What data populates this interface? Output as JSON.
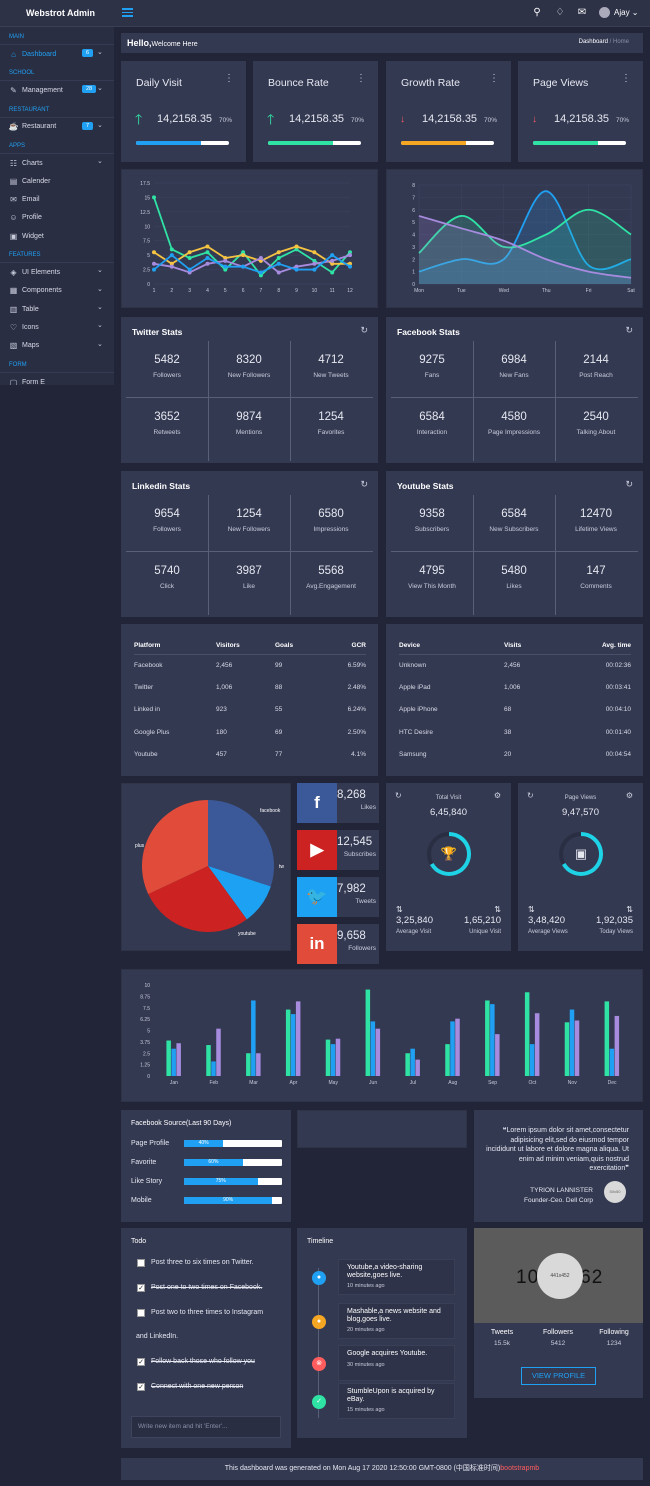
{
  "header": {
    "brand": "Webstrot Admin",
    "user": "Ajay ⌄"
  },
  "sidebar": [
    {
      "type": "section",
      "label": "MAIN"
    },
    {
      "type": "item",
      "label": "Dashboard",
      "icon": "home-icon",
      "glyph": "⌂",
      "badge": "6",
      "chevron": true,
      "active": true
    },
    {
      "type": "section",
      "label": "SCHOOL"
    },
    {
      "type": "item",
      "label": "Management",
      "icon": "management-icon",
      "glyph": "✎",
      "badge": "28",
      "chevron": true
    },
    {
      "type": "section",
      "label": "RESTAURANT"
    },
    {
      "type": "item",
      "label": "Restaurant",
      "icon": "restaurant-icon",
      "glyph": "☕",
      "badge": "7",
      "chevron": true
    },
    {
      "type": "section",
      "label": "APPS"
    },
    {
      "type": "item",
      "label": "Charts",
      "icon": "charts-icon",
      "glyph": "☷",
      "chevron": true
    },
    {
      "type": "item",
      "label": "Calender",
      "icon": "calendar-icon",
      "glyph": "▤"
    },
    {
      "type": "item",
      "label": "Email",
      "icon": "email-icon",
      "glyph": "✉"
    },
    {
      "type": "item",
      "label": "Profile",
      "icon": "profile-icon",
      "glyph": "☺"
    },
    {
      "type": "item",
      "label": "Widget",
      "icon": "widget-icon",
      "glyph": "▣"
    },
    {
      "type": "section",
      "label": "FEATURES"
    },
    {
      "type": "item",
      "label": "UI Elements",
      "icon": "ui-elements-icon",
      "glyph": "◈",
      "chevron": true
    },
    {
      "type": "item",
      "label": "Components",
      "icon": "components-icon",
      "glyph": "▦",
      "chevron": true
    },
    {
      "type": "item",
      "label": "Table",
      "icon": "table-icon",
      "glyph": "▥",
      "chevron": true
    },
    {
      "type": "item",
      "label": "Icons",
      "icon": "heart-icon",
      "glyph": "♡",
      "chevron": true
    },
    {
      "type": "item",
      "label": "Maps",
      "icon": "maps-icon",
      "glyph": "▧",
      "chevron": true
    },
    {
      "type": "section",
      "label": "FORM"
    },
    {
      "type": "item",
      "label": "Form E",
      "icon": "form-icon",
      "glyph": "▢"
    }
  ],
  "breadcrumb": {
    "hello": "Hello,",
    "welcome": "Welcome Here",
    "dashboard": "Dashboard",
    "separator": " / ",
    "home": "Home"
  },
  "stats": [
    {
      "title": "Daily Visit",
      "value": "14,2158.35",
      "percent": "70%",
      "trend": "up",
      "arrow": "🡑",
      "arrow_color": "#2fe3a4",
      "bar_color": "#1fa0f2",
      "progress": 0.7
    },
    {
      "title": "Bounce Rate",
      "value": "14,2158.35",
      "percent": "70%",
      "trend": "up",
      "arrow": "🡑",
      "arrow_color": "#2fe3a4",
      "bar_color": "#2fe3a4",
      "progress": 0.7
    },
    {
      "title": "Growth Rate",
      "value": "14,2158.35",
      "percent": "70%",
      "trend": "down",
      "arrow": "↓",
      "arrow_color": "#ff5d5d",
      "bar_color": "#f5a623",
      "progress": 0.7
    },
    {
      "title": "Page Views",
      "value": "14,2158.35",
      "percent": "70%",
      "trend": "down",
      "arrow": "↓",
      "arrow_color": "#ff5d5d",
      "bar_color": "#2fe3a4",
      "progress": 0.7
    }
  ],
  "chart_data": [
    {
      "type": "line",
      "x": [
        1,
        2,
        3,
        4,
        5,
        6,
        7,
        8,
        9,
        10,
        11,
        12
      ],
      "ylim": [
        0,
        17.5
      ],
      "yticks": [
        0,
        2.5,
        5,
        7.5,
        10,
        12.5,
        15,
        17.5
      ],
      "colors": {
        "teal": "#2fe3a4",
        "yellow": "#f5c342",
        "purple": "#a78bdf",
        "blue": "#1fa0f2"
      },
      "series": [
        {
          "color": "teal",
          "values": [
            15,
            6,
            4.5,
            5.5,
            2.5,
            5.5,
            1.5,
            4.5,
            6,
            4,
            2,
            5.5
          ]
        },
        {
          "color": "yellow",
          "values": [
            5.5,
            3.5,
            5.5,
            6.5,
            4.5,
            5,
            4,
            5.5,
            6.5,
            5.5,
            3.5,
            3.5
          ]
        },
        {
          "color": "purple",
          "values": [
            3.5,
            3,
            2,
            3.5,
            4,
            3,
            4.5,
            2,
            3,
            3.5,
            4,
            5
          ]
        },
        {
          "color": "blue",
          "values": [
            2.5,
            5,
            2.5,
            4.5,
            3,
            3,
            2,
            3.5,
            2.5,
            2.5,
            5,
            3
          ]
        }
      ]
    },
    {
      "type": "area",
      "categories": [
        "Mon",
        "Tue",
        "Wed",
        "Thu",
        "Fri",
        "Sat"
      ],
      "ylim": [
        0,
        8
      ],
      "yticks": [
        0,
        1,
        2,
        3,
        4,
        5,
        6,
        7,
        8
      ],
      "colors": {
        "blue": "#1fa0f2",
        "teal": "#2fe3a4",
        "purple": "#a78bdf"
      },
      "series": [
        {
          "color": "blue",
          "values": [
            1,
            2,
            2,
            7.5,
            1.5,
            2
          ]
        },
        {
          "color": "teal",
          "values": [
            2.5,
            5.5,
            3,
            4,
            6,
            4
          ]
        },
        {
          "color": "purple",
          "values": [
            5.5,
            4.5,
            3.5,
            2,
            1,
            0.5
          ]
        }
      ]
    },
    {
      "type": "pie",
      "labels": [
        "facebook",
        "tw",
        "youtube",
        "plus"
      ],
      "values": [
        30,
        10,
        28,
        32
      ],
      "colors": [
        "#3b5998",
        "#1da1f2",
        "#cc2222",
        "#e04b3a"
      ]
    },
    {
      "type": "bar",
      "categories": [
        "Jan",
        "Feb",
        "Mar",
        "Apr",
        "May",
        "Jun",
        "Jul",
        "Aug",
        "Sep",
        "Oct",
        "Nov",
        "Dec"
      ],
      "ylim": [
        0,
        10
      ],
      "yticks": [
        0,
        1.25,
        2.5,
        3.75,
        5,
        6.25,
        7.5,
        8.75,
        10
      ],
      "colors": {
        "teal": "#2fe3a4",
        "blue": "#1fa0f2",
        "purple": "#a78bdf"
      },
      "series": [
        {
          "color": "teal",
          "values": [
            3.9,
            3.4,
            2.5,
            7.3,
            4,
            9.5,
            2.5,
            3.5,
            8.3,
            9.2,
            5.9,
            8.2
          ]
        },
        {
          "color": "blue",
          "values": [
            3,
            1.6,
            8.3,
            6.8,
            3.5,
            6,
            3,
            6,
            7.9,
            3.5,
            7.3,
            3
          ]
        },
        {
          "color": "purple",
          "values": [
            3.6,
            5.2,
            2.5,
            8.2,
            4.1,
            5.2,
            1.8,
            6.3,
            4.6,
            6.9,
            6.1,
            6.6
          ]
        }
      ]
    }
  ],
  "twitter": {
    "title": "Twitter Stats",
    "cells": [
      {
        "value": "5482",
        "label": "Followers"
      },
      {
        "value": "8320",
        "label": "New Followers"
      },
      {
        "value": "4712",
        "label": "New Tweets"
      },
      {
        "value": "3652",
        "label": "Retweets"
      },
      {
        "value": "9874",
        "label": "Mentions"
      },
      {
        "value": "1254",
        "label": "Favorites"
      }
    ]
  },
  "facebook": {
    "title": "Facebook Stats",
    "cells": [
      {
        "value": "9275",
        "label": "Fans"
      },
      {
        "value": "6984",
        "label": "New Fans"
      },
      {
        "value": "2144",
        "label": "Post Reach"
      },
      {
        "value": "6584",
        "label": "Interaction"
      },
      {
        "value": "4580",
        "label": "Page Impressions"
      },
      {
        "value": "2540",
        "label": "Talking About"
      }
    ]
  },
  "linkedin": {
    "title": "Linkedin Stats",
    "cells": [
      {
        "value": "9654",
        "label": "Followers"
      },
      {
        "value": "1254",
        "label": "New Followers"
      },
      {
        "value": "6580",
        "label": "Impressions"
      },
      {
        "value": "5740",
        "label": "Click"
      },
      {
        "value": "3987",
        "label": "Like"
      },
      {
        "value": "5568",
        "label": "Avg.Engagement"
      }
    ]
  },
  "youtube": {
    "title": "Youtube Stats",
    "cells": [
      {
        "value": "9358",
        "label": "Subscribers"
      },
      {
        "value": "6584",
        "label": "New Subscribers"
      },
      {
        "value": "12470",
        "label": "Lifetime Views"
      },
      {
        "value": "4795",
        "label": "View This Month"
      },
      {
        "value": "5480",
        "label": "Likes"
      },
      {
        "value": "147",
        "label": "Comments"
      }
    ]
  },
  "platform_table": {
    "headers": [
      "Platform",
      "Visitors",
      "Goals",
      "GCR"
    ],
    "rows": [
      [
        "Facebook",
        "2,456",
        "99",
        "6.59%"
      ],
      [
        "Twitter",
        "1,006",
        "88",
        "2.48%"
      ],
      [
        "Linked in",
        "923",
        "55",
        "6.24%"
      ],
      [
        "Google Plus",
        "180",
        "69",
        "2.50%"
      ],
      [
        "Youtube",
        "457",
        "77",
        "4.1%"
      ]
    ]
  },
  "device_table": {
    "headers": [
      "Device",
      "Visits",
      "Avg. time"
    ],
    "rows": [
      [
        "Unknown",
        "2,456",
        "00:02:36"
      ],
      [
        "Apple iPad",
        "1,006",
        "00:03:41"
      ],
      [
        "Apple iPhone",
        "68",
        "00:04:10"
      ],
      [
        "HTC Desire",
        "38",
        "00:01:40"
      ],
      [
        "Samsung",
        "20",
        "00:04:54"
      ]
    ]
  },
  "social": [
    {
      "icon": "facebook-icon",
      "glyph": "f",
      "bg": "#3b5998",
      "value": "8,268",
      "label": "Likes"
    },
    {
      "icon": "youtube-icon",
      "glyph": "▶",
      "bg": "#cc2222",
      "value": "12,545",
      "label": "Subscribes"
    },
    {
      "icon": "twitter-icon",
      "glyph": "🐦",
      "bg": "#1da1f2",
      "value": "7,982",
      "label": "Tweets"
    },
    {
      "icon": "linkedin-icon",
      "glyph": "in",
      "bg": "#e04b3a",
      "value": "9,658",
      "label": "Followers"
    }
  ],
  "gauges": [
    {
      "title": "Total Visit",
      "value": "6,45,840",
      "icon": "trophy-icon",
      "glyph": "🏆",
      "left_value": "3,25,840",
      "left_label": "Average Visit",
      "right_value": "1,65,210",
      "right_label": "Unique Visit"
    },
    {
      "title": "Page Views",
      "value": "9,47,570",
      "icon": "wallet-icon",
      "glyph": "▣",
      "left_value": "3,48,420",
      "left_label": "Average Views",
      "right_value": "1,92,035",
      "right_label": "Today Views"
    }
  ],
  "fb_source": {
    "title": "Facebook Source(Last 90 Days)",
    "rows": [
      {
        "label": "Page Profile",
        "value": "40%",
        "fill": 0.4
      },
      {
        "label": "Favorite",
        "value": "60%",
        "fill": 0.6
      },
      {
        "label": "Like Story",
        "value": "75%",
        "fill": 0.75
      },
      {
        "label": "Mobile",
        "value": "90%",
        "fill": 0.9
      }
    ]
  },
  "quote": {
    "text": "Lorem ipsum dolor sit amet,consectetur adipisicing elit,sed do eiusmod tempor incididunt ut labore et dolore magna aliqua. Ut enim ad minim veniam,quis nostrud exercitation",
    "open": "❝",
    "close": "❞",
    "author": "TYRION LANNISTER",
    "role": "Founder-Ceo. Dell Corp",
    "avatar_text": "50x50"
  },
  "todo": {
    "title": "Todo",
    "items": [
      {
        "text": "Post three to six times on Twitter.",
        "done": false
      },
      {
        "text": "Post one to two times on Facebook.",
        "done": true
      },
      {
        "text": "Post two to three times to Instagram",
        "done": false
      },
      {
        "text": "and LinkedIn.",
        "done": false,
        "nocheck": true
      },
      {
        "text": "Follow back those who follow you",
        "done": true
      },
      {
        "text": "Connect with one new person",
        "done": true
      }
    ],
    "placeholder": "Write new item and hit 'Enter'..."
  },
  "timeline": {
    "title": "Timeline",
    "items": [
      {
        "text": "Youtube,a video-sharing website,goes live.",
        "time": "10 minutes ago",
        "color": "#1fa0f2",
        "glyph": "●"
      },
      {
        "text": "Mashable,a news website and blog,goes live.",
        "time": "20 minutes ago",
        "color": "#f5a623",
        "glyph": "●"
      },
      {
        "text": "Google acquires Youtube.",
        "time": "30 minutes ago",
        "color": "#ff5d5d",
        "glyph": "⊗"
      },
      {
        "text": "StumbleUpon is acquired by eBay.",
        "time": "15 minutes ago",
        "color": "#2fe3a4",
        "glyph": "✓"
      }
    ]
  },
  "profile": {
    "banner_text": "10",
    "banner_text_right": "62",
    "avatar_text": "441x452",
    "stats": [
      {
        "label": "Tweets",
        "value": "15.5k"
      },
      {
        "label": "Followers",
        "value": "5412"
      },
      {
        "label": "Following",
        "value": "1234"
      }
    ],
    "button": "VIEW PROFILE"
  },
  "footer": {
    "text": "This dashboard was generated on Mon Aug 17 2020 12:50:00 GMT-0800 (中国标准时间)",
    "brand": "bootstrapmb"
  }
}
